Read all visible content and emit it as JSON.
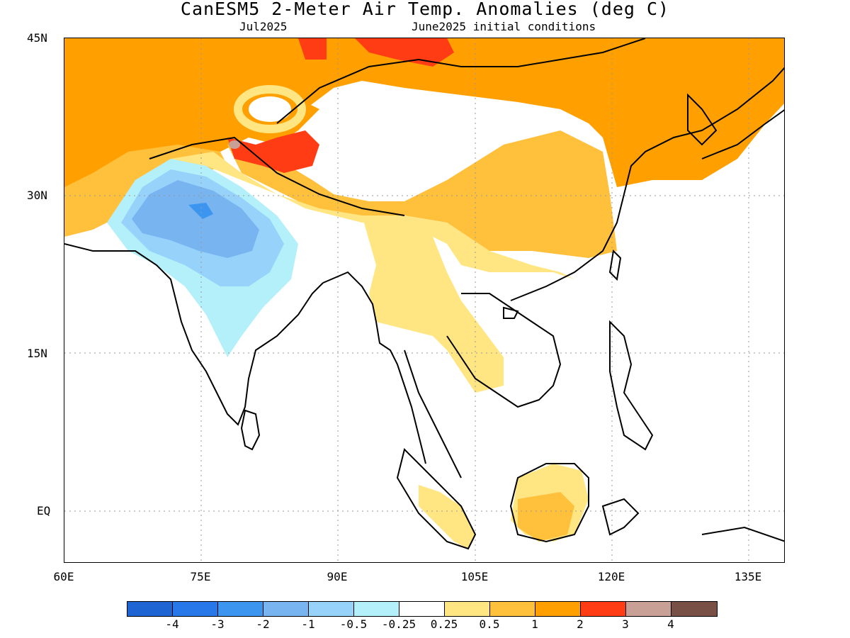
{
  "header": {
    "title": "CanESM5 2-Meter Air Temp. Anomalies (deg C)",
    "valid_month": "Jul2025",
    "init": "June2025 initial conditions"
  },
  "axes": {
    "lat_labels": [
      "45N",
      "30N",
      "15N",
      "EQ"
    ],
    "lon_labels": [
      "60E",
      "75E",
      "90E",
      "105E",
      "120E",
      "135E"
    ],
    "lon_range": [
      60,
      139
    ],
    "lat_range": [
      -5,
      45
    ]
  },
  "colorbar": {
    "colors": [
      "#1e64d2",
      "#2878ea",
      "#3c96f0",
      "#78b4f0",
      "#96d2fa",
      "#b4f0fa",
      "#ffffff",
      "#ffe682",
      "#ffc03c",
      "#ffa000",
      "#ff3c14",
      "#c8a096",
      "#785046"
    ],
    "labels": [
      "-4",
      "-3",
      "-2",
      "-1",
      "-0.5",
      "-0.25",
      "0.25",
      "0.5",
      "1",
      "2",
      "3",
      "4"
    ]
  },
  "map_colors": {
    "orange": "#ffa000",
    "light_orange": "#ffc03c",
    "yellow": "#ffe682",
    "red": "#ff3c14",
    "blue1": "#78b4f0",
    "blue2": "#96d2fa",
    "blue3": "#b4f0fa",
    "blue_dark": "#3c96f0",
    "pink": "#c8a096"
  }
}
